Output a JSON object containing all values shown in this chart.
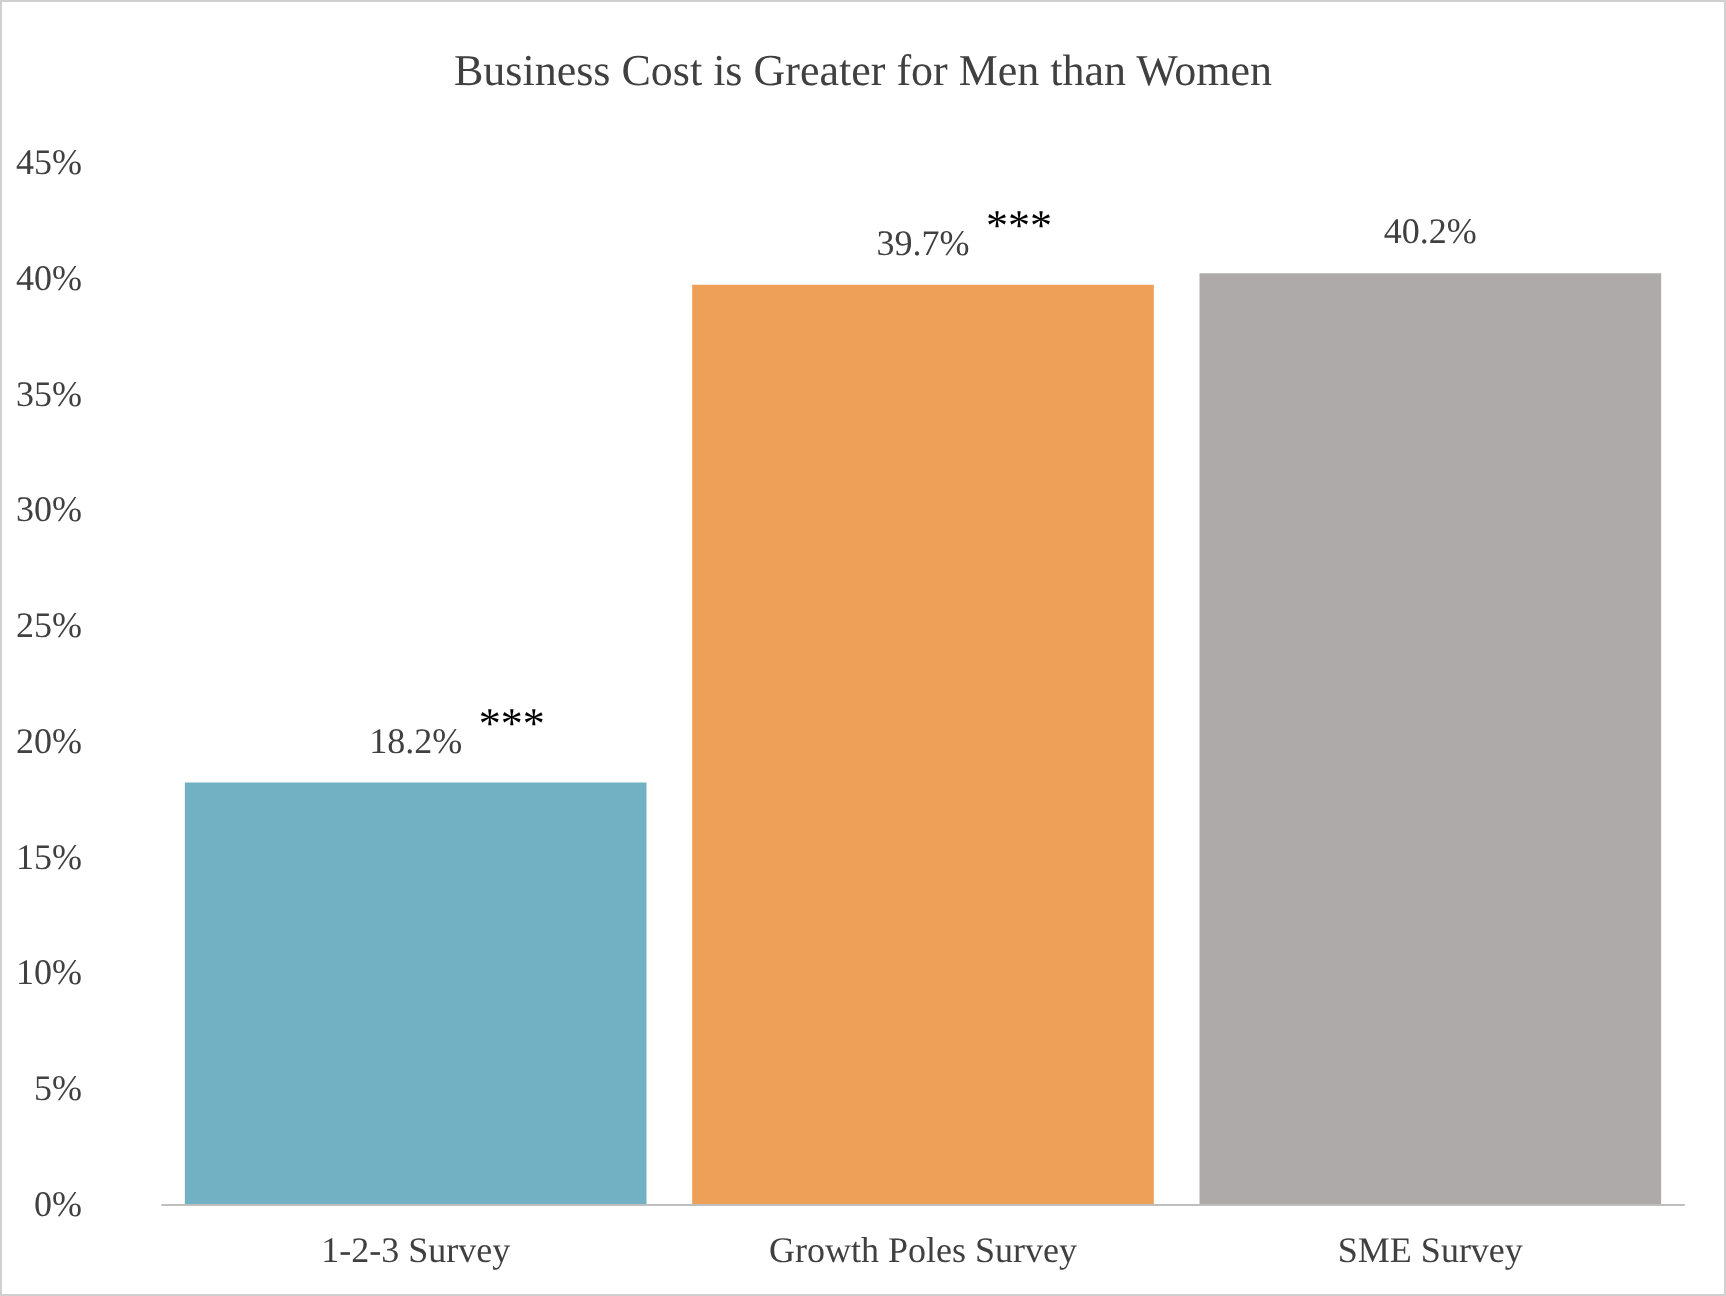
{
  "chart_data": {
    "type": "bar",
    "title": "Business Cost is Greater for Men than Women",
    "categories": [
      "1-2-3 Survey",
      "Growth Poles Survey",
      "SME Survey"
    ],
    "values": [
      18.2,
      39.7,
      40.2
    ],
    "colors": [
      "#72b1c3",
      "#eea058",
      "#aeaaaa"
    ],
    "value_labels": [
      "18.2%",
      "39.7%",
      "40.2%"
    ],
    "ylim": [
      0,
      45
    ],
    "yticks": [
      {
        "value": 0,
        "label": "0%"
      },
      {
        "value": 5,
        "label": "5%"
      },
      {
        "value": 10,
        "label": "10%"
      },
      {
        "value": 15,
        "label": "15%"
      },
      {
        "value": 20,
        "label": "20%"
      },
      {
        "value": 25,
        "label": "25%"
      },
      {
        "value": 30,
        "label": "30%"
      },
      {
        "value": 35,
        "label": "35%"
      },
      {
        "value": 40,
        "label": "40%"
      },
      {
        "value": 45,
        "label": "45%"
      }
    ],
    "annotations": [
      {
        "text": "***",
        "x": "1-2-3 Survey",
        "y": 18.2
      },
      {
        "text": "***",
        "x": "Growth Poles Survey",
        "y": 39.7
      }
    ],
    "grid": false
  }
}
